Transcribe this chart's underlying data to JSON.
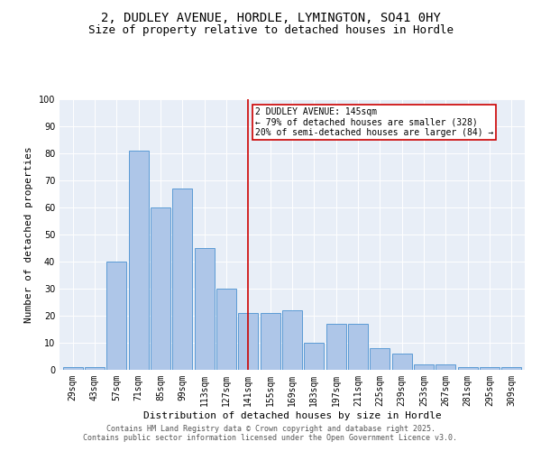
{
  "title_line1": "2, DUDLEY AVENUE, HORDLE, LYMINGTON, SO41 0HY",
  "title_line2": "Size of property relative to detached houses in Hordle",
  "xlabel": "Distribution of detached houses by size in Hordle",
  "ylabel": "Number of detached properties",
  "bar_labels": [
    "29sqm",
    "43sqm",
    "57sqm",
    "71sqm",
    "85sqm",
    "99sqm",
    "113sqm",
    "127sqm",
    "141sqm",
    "155sqm",
    "169sqm",
    "183sqm",
    "197sqm",
    "211sqm",
    "225sqm",
    "239sqm",
    "253sqm",
    "267sqm",
    "281sqm",
    "295sqm",
    "309sqm"
  ],
  "bar_values": [
    1,
    1,
    40,
    81,
    60,
    67,
    45,
    30,
    21,
    21,
    22,
    10,
    17,
    17,
    8,
    6,
    2,
    2,
    1,
    1,
    1
  ],
  "bar_color": "#aec6e8",
  "bar_edge_color": "#5b9bd5",
  "highlight_index": 8,
  "highlight_line_color": "#cc0000",
  "annotation_text": "2 DUDLEY AVENUE: 145sqm\n← 79% of detached houses are smaller (328)\n20% of semi-detached houses are larger (84) →",
  "annotation_box_color": "#cc0000",
  "ylim": [
    0,
    100
  ],
  "yticks": [
    0,
    10,
    20,
    30,
    40,
    50,
    60,
    70,
    80,
    90,
    100
  ],
  "background_color": "#e8eef7",
  "footer_text": "Contains HM Land Registry data © Crown copyright and database right 2025.\nContains public sector information licensed under the Open Government Licence v3.0.",
  "title_fontsize": 10,
  "subtitle_fontsize": 9,
  "axis_label_fontsize": 8,
  "tick_fontsize": 7,
  "annotation_fontsize": 7,
  "footer_fontsize": 6
}
